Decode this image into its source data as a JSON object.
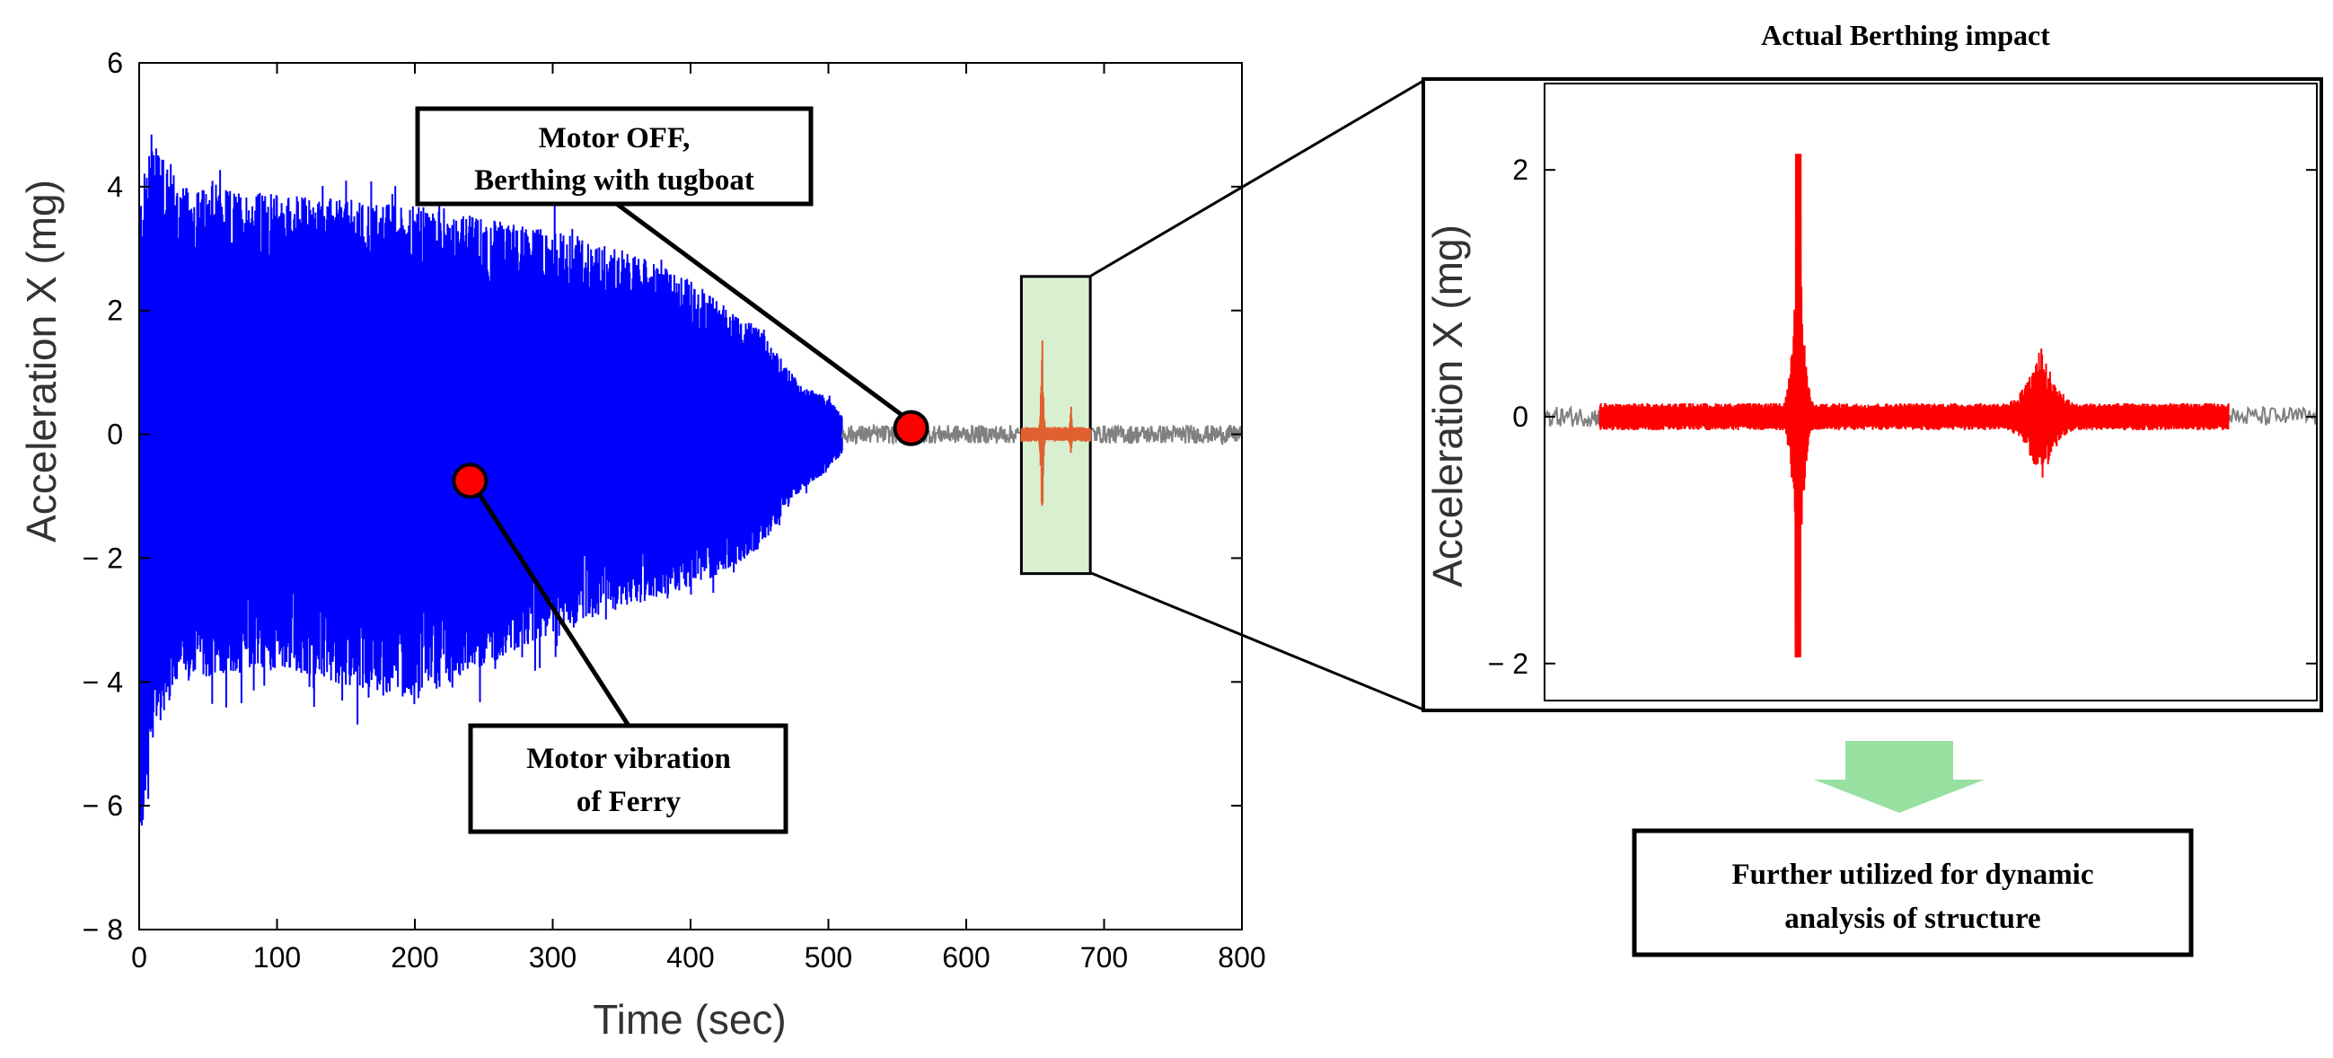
{
  "chart_data": [
    {
      "type": "line",
      "xlabel": "Time (sec)",
      "ylabel": "Acceleration X (mg)",
      "xlim": [
        0,
        800
      ],
      "ylim": [
        -8,
        6
      ],
      "x_ticks": [
        0,
        100,
        200,
        300,
        400,
        500,
        600,
        700,
        800
      ],
      "y_ticks": [
        -8,
        -6,
        -4,
        -2,
        0,
        2,
        4,
        6
      ],
      "series": [
        {
          "color": "#0000ff",
          "x_range": [
            0,
            510
          ],
          "envelope_x": [
            0,
            10,
            30,
            100,
            200,
            300,
            350,
            400,
            450,
            480,
            500,
            510
          ],
          "envelope_upper": [
            3.7,
            5.1,
            4.0,
            3.9,
            3.7,
            3.3,
            3.0,
            2.5,
            1.7,
            0.8,
            0.6,
            0.3
          ],
          "envelope_lower": [
            -6.9,
            -4.9,
            -4.0,
            -3.8,
            -4.3,
            -3.2,
            -2.8,
            -2.5,
            -1.9,
            -0.9,
            -0.6,
            -0.3
          ]
        },
        {
          "color": "#808080",
          "x_range": [
            510,
            800
          ],
          "amplitude": 0.15
        },
        {
          "color": "#e06030",
          "x_range": [
            640,
            690
          ],
          "impact_peaks": [
            {
              "x": 655,
              "upper": 2.1,
              "lower": -1.95
            },
            {
              "x": 676,
              "upper": 0.55,
              "lower": -0.5
            }
          ]
        }
      ],
      "annotations": [
        {
          "text_lines": [
            "Motor OFF,",
            "Berthing with tugboat"
          ],
          "marker": {
            "x": 560,
            "y": 0.1
          }
        },
        {
          "text_lines": [
            "Motor vibration",
            "of Ferry"
          ],
          "marker": {
            "x": 240,
            "y": -0.75
          }
        }
      ],
      "highlight_region": {
        "x": [
          640,
          690
        ],
        "y": [
          -2.25,
          2.55
        ],
        "color": "#d8f0d0"
      }
    },
    {
      "type": "line",
      "title": "Actual Berthing impact",
      "ylabel": "Acceleration X (mg)",
      "xlim": [
        630,
        700
      ],
      "ylim": [
        -2.3,
        2.7
      ],
      "y_ticks": [
        -2,
        0,
        2
      ],
      "series": [
        {
          "color": "#808080",
          "x_ranges": [
            [
              630,
              635
            ],
            [
              692,
              700
            ]
          ],
          "amplitude": 0.08
        },
        {
          "color": "#ff0000",
          "x_range": [
            635,
            692
          ],
          "impact_peaks": [
            {
              "x": 653,
              "upper": 2.13,
              "lower": -1.95
            },
            {
              "x": 675,
              "upper": 0.58,
              "lower": -0.55
            }
          ]
        }
      ]
    }
  ],
  "callout": {
    "arrow_color": "#98e0a0",
    "text_lines": [
      "Further utilized for dynamic",
      "analysis of structure"
    ]
  }
}
